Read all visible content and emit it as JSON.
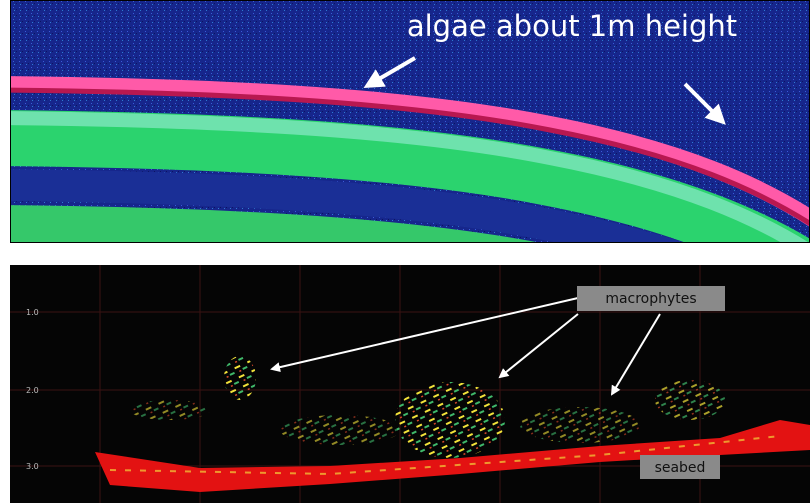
{
  "top_panel": {
    "annotation": "algae about 1m height"
  },
  "bottom_panel": {
    "depth_labels": [
      "1.0",
      "2.0",
      "3.0"
    ],
    "annotations": [
      "macrophytes",
      "seabed"
    ]
  }
}
